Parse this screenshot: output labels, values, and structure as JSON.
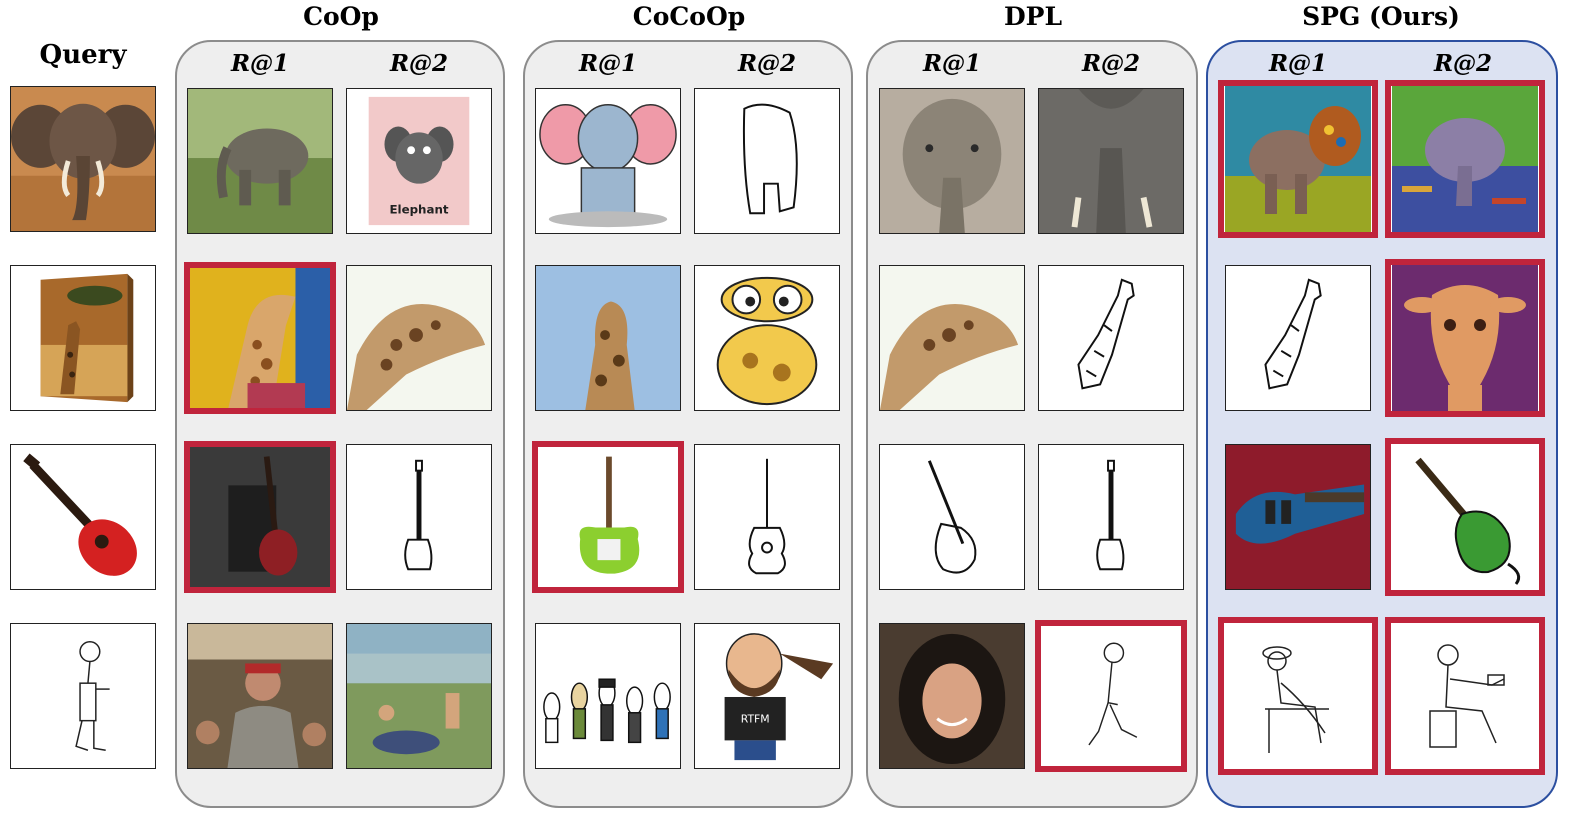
{
  "query_label": "Query",
  "rank_labels": {
    "r1": "R@1",
    "r2": "R@2"
  },
  "methods": [
    {
      "name": "CoOp"
    },
    {
      "name": "CoCoOp"
    },
    {
      "name": "DPL"
    },
    {
      "name": "SPG (Ours)"
    }
  ],
  "queries": [
    {
      "subject": "elephant painting"
    },
    {
      "subject": "giraffe painting on canvas"
    },
    {
      "subject": "red guitar clipart"
    },
    {
      "subject": "walking person sketch"
    }
  ],
  "results": {
    "coop": [
      [
        {
          "subject": "elephant photo"
        },
        {
          "subject": "elephant cartoon card",
          "text": "Elephant"
        }
      ],
      [
        {
          "subject": "giraffe smoking painting",
          "wrong": true
        },
        {
          "subject": "giraffe head photo"
        }
      ],
      [
        {
          "subject": "red electric guitar render",
          "wrong": true
        },
        {
          "subject": "bass guitar sketch"
        }
      ],
      [
        {
          "subject": "man in subway photo"
        },
        {
          "subject": "bathers painting"
        }
      ]
    ],
    "cocoop": [
      [
        {
          "subject": "elephant cartoon"
        },
        {
          "subject": "elephant sketch"
        }
      ],
      [
        {
          "subject": "giraffe photo sky"
        },
        {
          "subject": "giraffe cartoon"
        }
      ],
      [
        {
          "subject": "green electric guitar",
          "wrong": true
        },
        {
          "subject": "acoustic guitar sketch"
        }
      ],
      [
        {
          "subject": "cartoon people group"
        },
        {
          "subject": "bearded man cartoon",
          "text": "RTFM"
        }
      ]
    ],
    "dpl": [
      [
        {
          "subject": "elephant painting close"
        },
        {
          "subject": "elephant photo close"
        }
      ],
      [
        {
          "subject": "giraffe head photo"
        },
        {
          "subject": "giraffe sketch"
        }
      ],
      [
        {
          "subject": "acoustic guitar sketch"
        },
        {
          "subject": "bass guitar sketch"
        }
      ],
      [
        {
          "subject": "woman portrait photo"
        },
        {
          "subject": "walking person sketch",
          "wrong": true
        }
      ]
    ],
    "spg": [
      [
        {
          "subject": "elephant painter painting",
          "wrong": true
        },
        {
          "subject": "elephant in water painting",
          "wrong": true
        }
      ],
      [
        {
          "subject": "giraffe sketch"
        },
        {
          "subject": "giraffe painting purple",
          "wrong": true
        }
      ],
      [
        {
          "subject": "blue guitar in case photo"
        },
        {
          "subject": "green bass clipart",
          "wrong": true
        }
      ],
      [
        {
          "subject": "seated person sketch",
          "wrong": true
        },
        {
          "subject": "person at table sketch",
          "wrong": true
        }
      ]
    ]
  },
  "colors": {
    "wrong_border": "#c0243c",
    "panel_grey": "#eeeeee",
    "panel_ours": "#dce2f2",
    "panel_ours_border": "#2c4fa0"
  }
}
